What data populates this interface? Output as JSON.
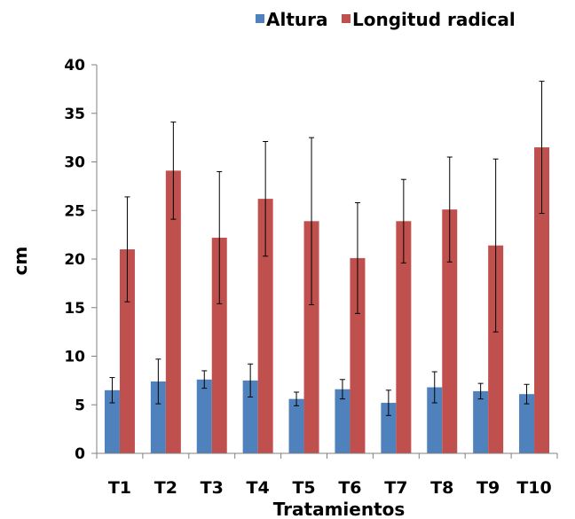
{
  "chart_data": {
    "type": "bar",
    "title": "",
    "xlabel": "Tratamientos",
    "ylabel": "cm",
    "ylim": [
      0,
      40
    ],
    "yticks": [
      0,
      5,
      10,
      15,
      20,
      25,
      30,
      35,
      40
    ],
    "categories": [
      "T1",
      "T2",
      "T3",
      "T4",
      "T5",
      "T6",
      "T7",
      "T8",
      "T9",
      "T10"
    ],
    "legend_position": "top",
    "grid": false,
    "series": [
      {
        "name": "Altura",
        "color": "#4F81BD",
        "values": [
          6.5,
          7.4,
          7.6,
          7.5,
          5.6,
          6.6,
          5.2,
          6.8,
          6.4,
          6.1
        ],
        "errors": [
          1.3,
          2.3,
          0.9,
          1.7,
          0.7,
          1.0,
          1.3,
          1.6,
          0.8,
          1.0
        ]
      },
      {
        "name": "Longitud radical",
        "color": "#C0504D",
        "values": [
          21.0,
          29.1,
          22.2,
          26.2,
          23.9,
          20.1,
          23.9,
          25.1,
          21.4,
          31.5
        ],
        "errors": [
          5.4,
          5.0,
          6.8,
          5.9,
          8.6,
          5.7,
          4.3,
          5.4,
          8.9,
          6.8
        ]
      }
    ]
  }
}
